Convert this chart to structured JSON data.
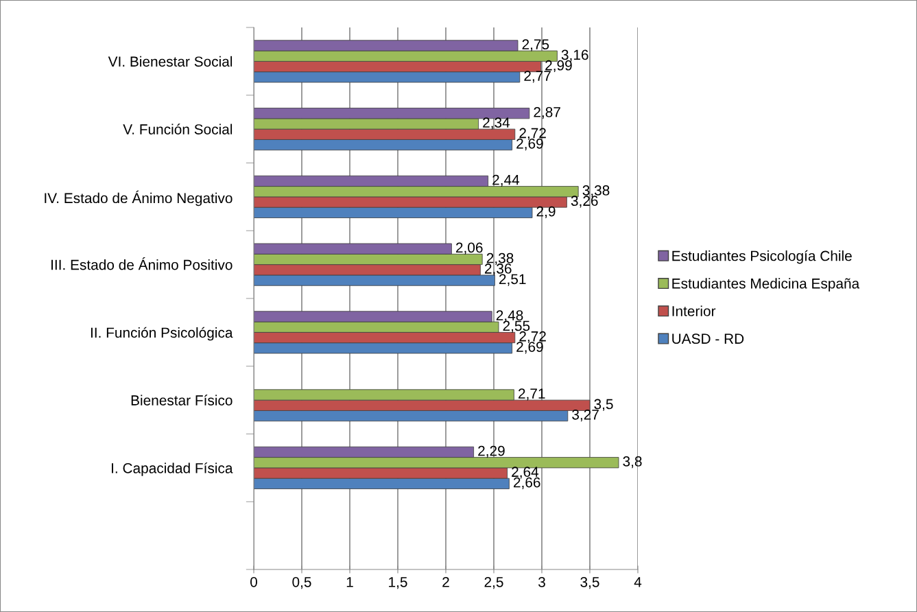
{
  "chart_data": {
    "type": "bar",
    "orientation": "horizontal",
    "categories": [
      "VI. Bienestar Social",
      "V. Función Social",
      "IV. Estado de Ánimo Negativo",
      "III. Estado de Ánimo Positivo",
      "II. Función Psicológica",
      "Bienestar Físico",
      "I. Capacidad Física",
      null
    ],
    "series": [
      {
        "name": "UASD - RD",
        "color": "#4f81bd",
        "values": [
          2.77,
          2.69,
          2.9,
          2.51,
          2.69,
          3.27,
          2.66,
          null
        ],
        "value_labels": [
          "2,77",
          "2,69",
          "2,9",
          "2,51",
          "2,69",
          "3,27",
          "2,66",
          null
        ]
      },
      {
        "name": "Interior",
        "color": "#c0504d",
        "values": [
          2.99,
          2.72,
          3.26,
          2.36,
          2.72,
          3.5,
          2.64,
          null
        ],
        "value_labels": [
          "2,99",
          "2,72",
          "3,26",
          "2,36",
          "2,72",
          "3,5",
          "2,64",
          null
        ]
      },
      {
        "name": "Estudiantes Medicina España",
        "color": "#9bbb59",
        "values": [
          3.16,
          2.34,
          3.38,
          2.38,
          2.55,
          2.71,
          3.8,
          null
        ],
        "value_labels": [
          "3,16",
          "2,34",
          "3,38",
          "2,38",
          "2,55",
          "2,71",
          "3,8",
          null
        ]
      },
      {
        "name": "Estudiantes Psicología Chile",
        "color": "#8064a2",
        "values": [
          2.75,
          2.87,
          2.44,
          2.06,
          2.48,
          null,
          2.29,
          null
        ],
        "value_labels": [
          "2,75",
          "2,87",
          "2,44",
          "2,06",
          "2,48",
          null,
          "2,29",
          null
        ]
      }
    ],
    "xlim": [
      0,
      4
    ],
    "xticks": [
      0,
      {
        "value": 0.5,
        "label": "0,5"
      },
      1,
      {
        "value": 1.5,
        "label": "1,5"
      },
      2,
      {
        "value": 2.5,
        "label": "2,5"
      },
      3,
      {
        "value": 3.5,
        "label": "3,5"
      },
      4
    ],
    "grid": "x",
    "legend": "right"
  }
}
